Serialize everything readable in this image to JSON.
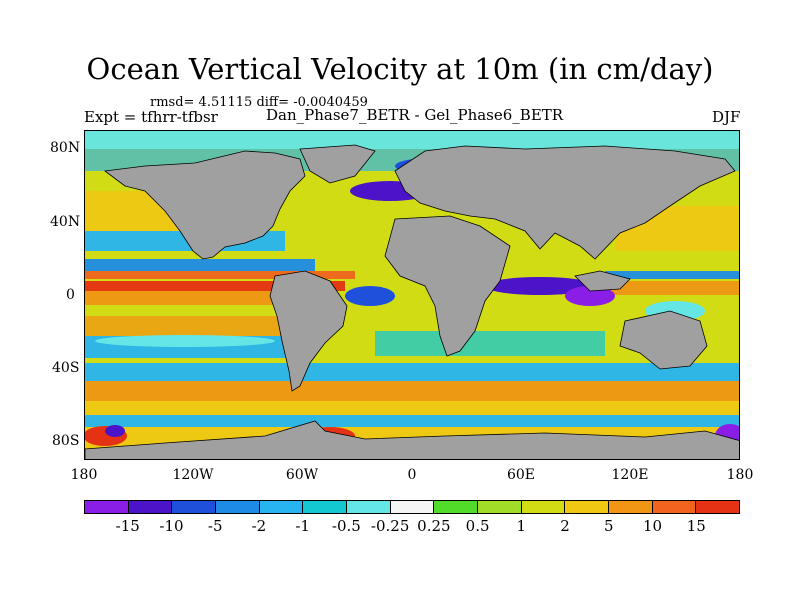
{
  "figure": {
    "title": "Ocean Vertical Velocity at 10m (in cm/day)",
    "stats": "rmsd= 4.51115 diff= -0.0040459",
    "experiment": "Expt = tfhrr-tfbsr",
    "cases": "Dan_Phase7_BETR - Gel_Phase6_BETR",
    "season": "DJF"
  },
  "axes": {
    "y_ticks": [
      "80N",
      "40N",
      "0",
      "40S",
      "80S"
    ],
    "x_ticks": [
      "180",
      "120W",
      "60W",
      "0",
      "60E",
      "120E",
      "180"
    ]
  },
  "colorbar": {
    "colors": [
      "#8a1ee6",
      "#4b14c8",
      "#1e50dc",
      "#1e8ce6",
      "#28b4f0",
      "#14c8d2",
      "#64e6e6",
      "#f5f5f5",
      "#50dc28",
      "#a0dc28",
      "#d2dc14",
      "#f0c814",
      "#f09614",
      "#f0641e",
      "#e63214"
    ],
    "labels": [
      "-15",
      "-10",
      "-5",
      "-2",
      "-1",
      "-0.5",
      "-0.25",
      "0.25",
      "0.5",
      "1",
      "2",
      "5",
      "10",
      "15"
    ]
  },
  "map_colors": {
    "land": "#a0a0a0",
    "ocean_base": "#d2dc14"
  }
}
